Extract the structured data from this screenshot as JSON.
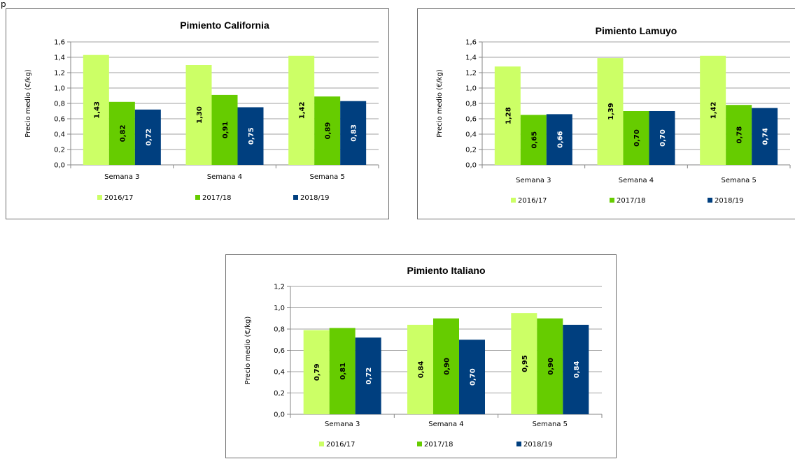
{
  "top_mark": "p",
  "colors": {
    "s1": "#ccff66",
    "s2": "#66cc00",
    "s3": "#003f7f",
    "grid": "#a0a0a0",
    "axis": "#868686"
  },
  "chart_data": [
    {
      "type": "bar",
      "title": "Pimiento California",
      "ylabel": "Precio medio (€/kg)",
      "xlabel": "",
      "ylim": [
        0,
        1.6
      ],
      "yticks": [
        "0,0",
        "0,2",
        "0,4",
        "0,6",
        "0,8",
        "1,0",
        "1,2",
        "1,4",
        "1,6"
      ],
      "grid": true,
      "legend_position": "bottom",
      "categories": [
        "Semana 3",
        "Semana 4",
        "Semana 5"
      ],
      "series": [
        {
          "name": "2016/17",
          "values": [
            1.43,
            1.3,
            1.42
          ],
          "labels": [
            "1,43",
            "1,30",
            "1,42"
          ]
        },
        {
          "name": "2017/18",
          "values": [
            0.82,
            0.91,
            0.89
          ],
          "labels": [
            "0,82",
            "0,91",
            "0,89"
          ]
        },
        {
          "name": "2018/19",
          "values": [
            0.72,
            0.75,
            0.83
          ],
          "labels": [
            "0,72",
            "0,75",
            "0,83"
          ]
        }
      ]
    },
    {
      "type": "bar",
      "title": "Pimiento Lamuyo",
      "ylabel": "Precio medio (€/kg)",
      "xlabel": "",
      "ylim": [
        0,
        1.6
      ],
      "yticks": [
        "0,0",
        "0,2",
        "0,4",
        "0,6",
        "0,8",
        "1,0",
        "1,2",
        "1,4",
        "1,6"
      ],
      "grid": true,
      "legend_position": "bottom",
      "categories": [
        "Semana 3",
        "Semana 4",
        "Semana 5"
      ],
      "series": [
        {
          "name": "2016/17",
          "values": [
            1.28,
            1.39,
            1.42
          ],
          "labels": [
            "1,28",
            "1,39",
            "1,42"
          ]
        },
        {
          "name": "2017/18",
          "values": [
            0.65,
            0.7,
            0.78
          ],
          "labels": [
            "0,65",
            "0,70",
            "0,78"
          ]
        },
        {
          "name": "2018/19",
          "values": [
            0.66,
            0.7,
            0.74
          ],
          "labels": [
            "0,66",
            "0,70",
            "0,74"
          ]
        }
      ]
    },
    {
      "type": "bar",
      "title": "Pimiento Italiano",
      "ylabel": "Precio medio (€/kg)",
      "xlabel": "",
      "ylim": [
        0,
        1.2
      ],
      "yticks": [
        "0,0",
        "0,2",
        "0,4",
        "0,6",
        "0,8",
        "1,0",
        "1,2"
      ],
      "grid": true,
      "legend_position": "bottom",
      "categories": [
        "Semana 3",
        "Semana 4",
        "Semana 5"
      ],
      "series": [
        {
          "name": "2016/17",
          "values": [
            0.79,
            0.84,
            0.95
          ],
          "labels": [
            "0,79",
            "0,84",
            "0,95"
          ]
        },
        {
          "name": "2017/18",
          "values": [
            0.81,
            0.9,
            0.9
          ],
          "labels": [
            "0,81",
            "0,90",
            "0,90"
          ]
        },
        {
          "name": "2018/19",
          "values": [
            0.72,
            0.7,
            0.84
          ],
          "labels": [
            "0,72",
            "0,70",
            "0,84"
          ]
        }
      ]
    }
  ]
}
